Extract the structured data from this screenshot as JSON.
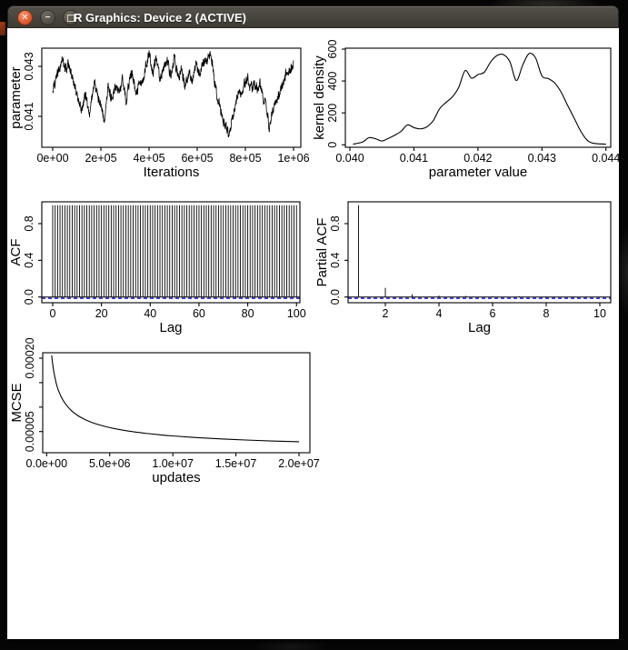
{
  "window": {
    "title": "R Graphics: Device 2 (ACTIVE)",
    "buttons": {
      "close_glyph": "✕",
      "minimize_glyph": "−",
      "maximize_label": "maximize"
    }
  },
  "colors": {
    "plot_fg": "#000000",
    "ci_line": "#0000dd",
    "content_bg": "#ffffff",
    "titlebar": "#3e3b35",
    "close_button": "#e2603a",
    "desktop": "#060606"
  },
  "chart_data": [
    {
      "id": "trace",
      "type": "line",
      "title": "",
      "xlabel": "Iterations",
      "ylabel": "parameter",
      "grid": false,
      "legend": "none",
      "box": {
        "l": 38,
        "t": 22,
        "r": 323,
        "b": 131
      },
      "xlim": [
        -45283,
        1030189
      ],
      "ylim": [
        0.039764,
        0.043727
      ],
      "xticks": [
        {
          "v": 0,
          "l": "0e+00"
        },
        {
          "v": 200000,
          "l": "2e+05"
        },
        {
          "v": 400000,
          "l": "4e+05"
        },
        {
          "v": 600000,
          "l": "6e+05"
        },
        {
          "v": 800000,
          "l": "8e+05"
        },
        {
          "v": 1000000,
          "l": "1e+06"
        }
      ],
      "yticks": [
        {
          "v": 0.041,
          "l": "0.041"
        },
        {
          "v": 0.043,
          "l": "0.043"
        }
      ],
      "anchors": [
        [
          0,
          0.042
        ],
        [
          20000,
          0.0427
        ],
        [
          40000,
          0.0433
        ],
        [
          55000,
          0.0429
        ],
        [
          65000,
          0.0431
        ],
        [
          80000,
          0.0427
        ],
        [
          95000,
          0.0421
        ],
        [
          110000,
          0.0415
        ],
        [
          120000,
          0.0412
        ],
        [
          135000,
          0.0419
        ],
        [
          150000,
          0.041
        ],
        [
          165000,
          0.0419
        ],
        [
          175000,
          0.0423
        ],
        [
          190000,
          0.0417
        ],
        [
          205000,
          0.0412
        ],
        [
          215000,
          0.0409
        ],
        [
          230000,
          0.0421
        ],
        [
          245000,
          0.0417
        ],
        [
          260000,
          0.0421
        ],
        [
          275000,
          0.0419
        ],
        [
          290000,
          0.0425
        ],
        [
          305000,
          0.0417
        ],
        [
          320000,
          0.0424
        ],
        [
          330000,
          0.0428
        ],
        [
          345000,
          0.0419
        ],
        [
          360000,
          0.0423
        ],
        [
          375000,
          0.0424
        ],
        [
          390000,
          0.0432
        ],
        [
          400000,
          0.0435
        ],
        [
          415000,
          0.0427
        ],
        [
          430000,
          0.0434
        ],
        [
          445000,
          0.0425
        ],
        [
          460000,
          0.0429
        ],
        [
          475000,
          0.0432
        ],
        [
          490000,
          0.0426
        ],
        [
          505000,
          0.0434
        ],
        [
          520000,
          0.0425
        ],
        [
          535000,
          0.0429
        ],
        [
          550000,
          0.0422
        ],
        [
          565000,
          0.0427
        ],
        [
          580000,
          0.0424
        ],
        [
          595000,
          0.0431
        ],
        [
          610000,
          0.0426
        ],
        [
          625000,
          0.0432
        ],
        [
          640000,
          0.0433
        ],
        [
          655000,
          0.0435
        ],
        [
          665000,
          0.043
        ],
        [
          675000,
          0.0422
        ],
        [
          690000,
          0.0415
        ],
        [
          700000,
          0.0412
        ],
        [
          710000,
          0.0408
        ],
        [
          720000,
          0.0406
        ],
        [
          730000,
          0.0402
        ],
        [
          740000,
          0.0407
        ],
        [
          750000,
          0.0411
        ],
        [
          760000,
          0.0415
        ],
        [
          770000,
          0.0418
        ],
        [
          785000,
          0.042
        ],
        [
          800000,
          0.0423
        ],
        [
          810000,
          0.0425
        ],
        [
          820000,
          0.0421
        ],
        [
          835000,
          0.0423
        ],
        [
          850000,
          0.0421
        ],
        [
          860000,
          0.0423
        ],
        [
          875000,
          0.0417
        ],
        [
          890000,
          0.0412
        ],
        [
          900000,
          0.0404
        ],
        [
          910000,
          0.0412
        ],
        [
          925000,
          0.0416
        ],
        [
          940000,
          0.0419
        ],
        [
          955000,
          0.0424
        ],
        [
          970000,
          0.0427
        ],
        [
          985000,
          0.0428
        ],
        [
          1000000,
          0.0431
        ]
      ],
      "noise": {
        "seed": 987654321,
        "amp": 0.00018,
        "ar": 0.5,
        "n": 1300
      }
    },
    {
      "id": "density",
      "type": "line",
      "title": "",
      "xlabel": "parameter value",
      "ylabel": "kernel density",
      "grid": false,
      "legend": "none",
      "box": {
        "l": 372,
        "t": 22,
        "r": 664,
        "b": 131
      },
      "xlim": [
        0.039929,
        0.044075
      ],
      "ylim": [
        -15.4,
        605.7
      ],
      "xticks": [
        {
          "v": 0.04,
          "l": "0.040"
        },
        {
          "v": 0.041,
          "l": "0.041"
        },
        {
          "v": 0.042,
          "l": "0.042"
        },
        {
          "v": 0.043,
          "l": "0.043"
        },
        {
          "v": 0.044,
          "l": "0.044"
        }
      ],
      "yticks": [
        {
          "v": 0,
          "l": "0"
        },
        {
          "v": 200,
          "l": "200"
        },
        {
          "v": 400,
          "l": "400"
        },
        {
          "v": 600,
          "l": "600"
        }
      ],
      "points": [
        [
          0.04005,
          4
        ],
        [
          0.0402,
          18
        ],
        [
          0.0403,
          45
        ],
        [
          0.0404,
          38
        ],
        [
          0.0405,
          24
        ],
        [
          0.0406,
          40
        ],
        [
          0.0407,
          60
        ],
        [
          0.0408,
          85
        ],
        [
          0.0409,
          125
        ],
        [
          0.041,
          108
        ],
        [
          0.0411,
          100
        ],
        [
          0.0412,
          112
        ],
        [
          0.0413,
          150
        ],
        [
          0.0414,
          225
        ],
        [
          0.0415,
          265
        ],
        [
          0.0416,
          300
        ],
        [
          0.0417,
          360
        ],
        [
          0.0418,
          465
        ],
        [
          0.0419,
          418
        ],
        [
          0.042,
          440
        ],
        [
          0.0421,
          455
        ],
        [
          0.0422,
          520
        ],
        [
          0.0423,
          560
        ],
        [
          0.0424,
          565
        ],
        [
          0.0425,
          520
        ],
        [
          0.0426,
          403
        ],
        [
          0.0427,
          500
        ],
        [
          0.0428,
          572
        ],
        [
          0.0429,
          545
        ],
        [
          0.043,
          432
        ],
        [
          0.0431,
          415
        ],
        [
          0.0432,
          388
        ],
        [
          0.0433,
          330
        ],
        [
          0.0434,
          248
        ],
        [
          0.0435,
          170
        ],
        [
          0.0436,
          90
        ],
        [
          0.0437,
          32
        ],
        [
          0.0438,
          10
        ],
        [
          0.044,
          4
        ]
      ]
    },
    {
      "id": "acf",
      "type": "stem",
      "title": "",
      "xlabel": "Lag",
      "ylabel": "ACF",
      "grid": false,
      "legend": "none",
      "box": {
        "l": 38,
        "t": 191,
        "r": 322,
        "b": 302
      },
      "xlim": [
        -4.47,
        101.4
      ],
      "ylim": [
        -0.0624,
        1.0377
      ],
      "xticks": [
        {
          "v": 0,
          "l": "0"
        },
        {
          "v": 20,
          "l": "20"
        },
        {
          "v": 40,
          "l": "40"
        },
        {
          "v": 60,
          "l": "60"
        },
        {
          "v": 80,
          "l": "80"
        },
        {
          "v": 100,
          "l": "100"
        }
      ],
      "yticks": [
        {
          "v": 0.0,
          "l": "0.0"
        },
        {
          "v": 0.4,
          "l": "0.4"
        },
        {
          "v": 0.8,
          "l": "0.8"
        }
      ],
      "stems_uniform": {
        "start": 0,
        "end": 100,
        "step": 1,
        "value": 1.0
      },
      "zero_line": true,
      "ci_line": {
        "y": 0,
        "color": "#0000dd",
        "dash": "4,3"
      }
    },
    {
      "id": "pacf",
      "type": "stem",
      "title": "",
      "xlabel": "Lag",
      "ylabel": "Partial ACF",
      "grid": false,
      "legend": "none",
      "box": {
        "l": 375,
        "t": 191,
        "r": 664,
        "b": 302
      },
      "xlim": [
        0.61,
        10.407
      ],
      "ylim": [
        -0.0624,
        1.0377
      ],
      "xticks": [
        {
          "v": 2,
          "l": "2"
        },
        {
          "v": 4,
          "l": "4"
        },
        {
          "v": 6,
          "l": "6"
        },
        {
          "v": 8,
          "l": "8"
        },
        {
          "v": 10,
          "l": "10"
        }
      ],
      "yticks": [
        {
          "v": 0.0,
          "l": "0.0"
        },
        {
          "v": 0.4,
          "l": "0.4"
        },
        {
          "v": 0.8,
          "l": "0.8"
        }
      ],
      "stems": [
        [
          1,
          1.0
        ],
        [
          2,
          0.1
        ],
        [
          3,
          0.03
        ],
        [
          4,
          0.016
        ],
        [
          5,
          0.012
        ],
        [
          6,
          0.009
        ],
        [
          7,
          0.007
        ],
        [
          8,
          0.006
        ],
        [
          9,
          0.005
        ],
        [
          10,
          0.004
        ]
      ],
      "zero_line": true,
      "ci_line": {
        "y": 0,
        "color": "#0000dd",
        "dash": "4,3"
      }
    },
    {
      "id": "mcse",
      "type": "line",
      "title": "",
      "xlabel": "updates",
      "ylabel": "MCSE",
      "grid": false,
      "legend": "none",
      "box": {
        "l": 39,
        "t": 357,
        "r": 333,
        "b": 467
      },
      "xlim": [
        -310000,
        20864000
      ],
      "ylim": [
        6.7e-06,
        0.0002112
      ],
      "xticks": [
        {
          "v": 0,
          "l": "0.0e+00"
        },
        {
          "v": 5000000,
          "l": "5.0e+06"
        },
        {
          "v": 10000000,
          "l": "1.0e+07"
        },
        {
          "v": 15000000,
          "l": "1.5e+07"
        },
        {
          "v": 20000000,
          "l": "2.0e+07"
        }
      ],
      "yticks": [
        {
          "v": 5e-05,
          "l": "0.00005"
        },
        {
          "v": 0.0001,
          "l": ""
        },
        {
          "v": 0.00015,
          "l": ""
        },
        {
          "v": 0.0002,
          "l": "0.00020"
        }
      ],
      "points": [
        [
          400000,
          0.000206
        ],
        [
          500000,
          0.000184
        ],
        [
          600000,
          0.000168
        ],
        [
          800000,
          0.000145
        ],
        [
          1000000,
          0.00013
        ],
        [
          1300000,
          0.000114
        ],
        [
          1600000,
          0.000103
        ],
        [
          2000000,
          9.19e-05
        ],
        [
          2500000,
          8.22e-05
        ],
        [
          3000000,
          7.51e-05
        ],
        [
          3500000,
          6.95e-05
        ],
        [
          4000000,
          6.5e-05
        ],
        [
          5000000,
          5.81e-05
        ],
        [
          6000000,
          5.31e-05
        ],
        [
          7000000,
          4.91e-05
        ],
        [
          8000000,
          4.6e-05
        ],
        [
          9000000,
          4.33e-05
        ],
        [
          10000000,
          4.11e-05
        ],
        [
          12000000,
          3.75e-05
        ],
        [
          14000000,
          3.47e-05
        ],
        [
          16000000,
          3.25e-05
        ],
        [
          18000000,
          3.06e-05
        ],
        [
          20000000,
          2.91e-05
        ]
      ]
    }
  ]
}
